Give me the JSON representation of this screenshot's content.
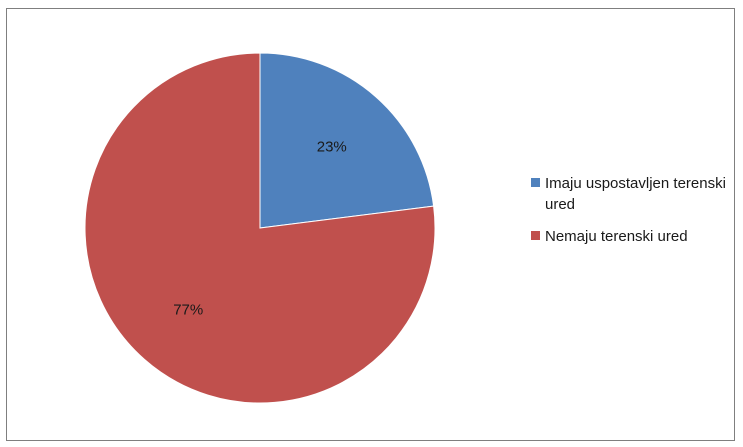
{
  "chart_data": {
    "type": "pie",
    "slices": [
      {
        "name": "Imaju uspostavljen terenski ured",
        "value": 23,
        "label": "23%",
        "color": "#4f81bd"
      },
      {
        "name": "Nemaju terenski ured",
        "value": 77,
        "label": "77%",
        "color": "#c0504d"
      }
    ],
    "legend_position": "right",
    "start_angle": "top",
    "direction": "clockwise"
  }
}
